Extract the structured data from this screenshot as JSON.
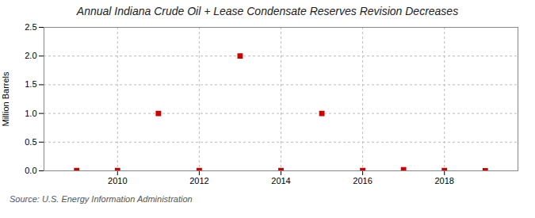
{
  "chart_data": {
    "type": "scatter",
    "title": "Annual Indiana Crude Oil + Lease Condensate Reserves Revision Decreases",
    "ylabel": "Million Barrels",
    "annotations": [
      "Source: U.S. Energy Information Administration"
    ],
    "x": [
      2009,
      2010,
      2011,
      2012,
      2013,
      2014,
      2015,
      2016,
      2017,
      2018,
      2019
    ],
    "values": [
      0.005,
      0.005,
      1.0,
      0.005,
      2.0,
      0.005,
      1.0,
      0.005,
      0.02,
      0.005,
      0.0
    ],
    "color": "#cc0000",
    "marker": "square",
    "xlim": [
      2008.2,
      2019.8
    ],
    "xticks": [
      2010,
      2012,
      2014,
      2016,
      2018
    ],
    "ylim": [
      0,
      2.5
    ],
    "yticks": [
      {
        "value": 0.0,
        "label": "0.0"
      },
      0.5,
      {
        "value": 1.0,
        "label": "1.0"
      },
      1.5,
      {
        "value": 2.0,
        "label": "2.0"
      },
      2.5
    ],
    "grid": true
  }
}
